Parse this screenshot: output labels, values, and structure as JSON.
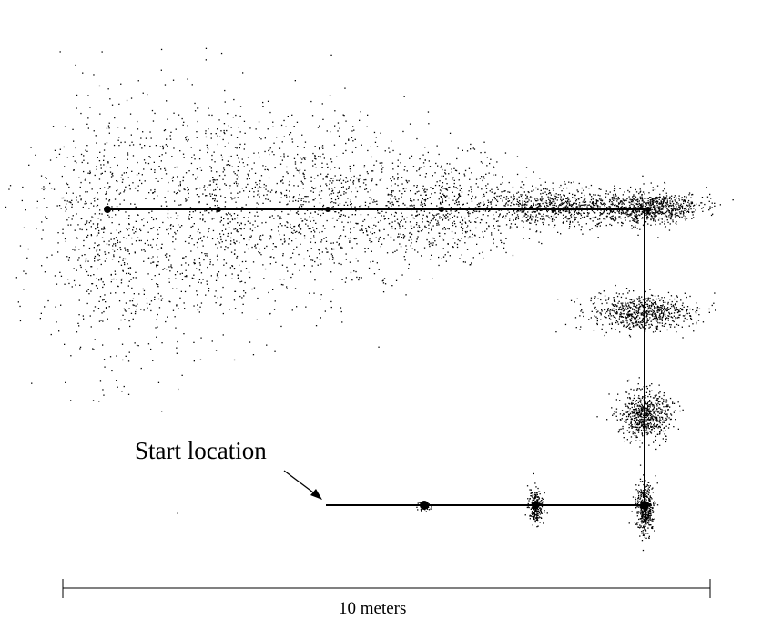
{
  "annotations": {
    "start_label": "Start location",
    "scale_label": "10 meters"
  },
  "colors": {
    "ink": "#000000",
    "background": "#ffffff"
  },
  "path": {
    "description_units": "meters",
    "waypoints_m": [
      [
        4.1,
        0
      ],
      [
        5.6,
        0
      ],
      [
        7.3,
        0
      ],
      [
        8.9,
        0
      ],
      [
        8.9,
        1.5
      ],
      [
        8.9,
        2.9
      ],
      [
        8.9,
        4.4
      ],
      [
        7.3,
        4.4
      ],
      [
        5.6,
        4.4
      ],
      [
        3.9,
        4.4
      ],
      [
        2.2,
        4.4
      ],
      [
        0.5,
        4.4
      ]
    ]
  },
  "scale_bar": {
    "length_m": 10
  }
}
